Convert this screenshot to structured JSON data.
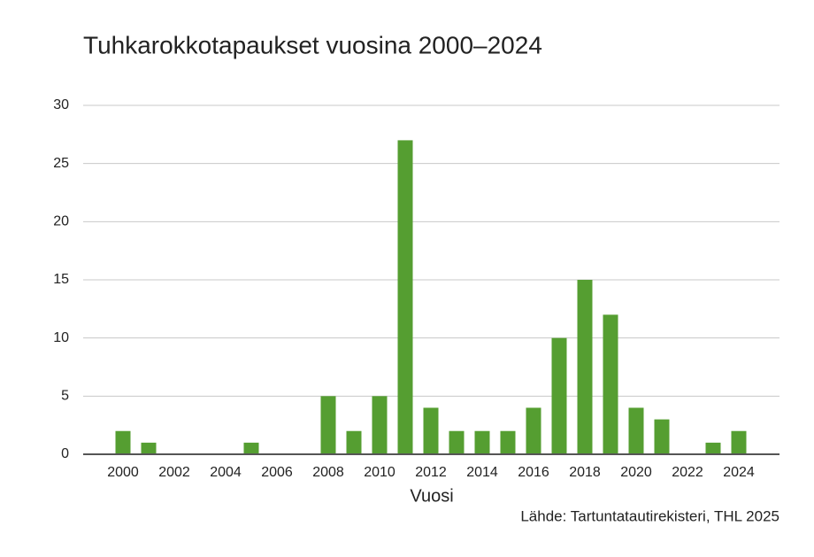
{
  "chart_data": {
    "type": "bar",
    "title": "Tuhkarokkotapaukset vuosina 2000–2024",
    "categories": [
      "2000",
      null,
      "2002",
      null,
      "2004",
      null,
      "2006",
      null,
      "2008",
      null,
      "2010",
      null,
      "2012",
      null,
      "2014",
      null,
      "2016",
      null,
      "2018",
      null,
      "2020",
      null,
      "2022",
      null,
      "2024"
    ],
    "values": [
      2,
      1,
      0,
      0,
      0,
      1,
      0,
      0,
      5,
      2,
      5,
      27,
      4,
      2,
      2,
      2,
      4,
      10,
      15,
      12,
      4,
      3,
      0,
      1,
      2
    ],
    "color": "#559e31",
    "ylim": [
      0,
      30
    ],
    "yticks": [
      0,
      5,
      10,
      15,
      20,
      25,
      30
    ],
    "grid": true,
    "x_label": "Vuosi",
    "source": "Lähde: Tartuntatautirekisteri, THL 2025"
  }
}
